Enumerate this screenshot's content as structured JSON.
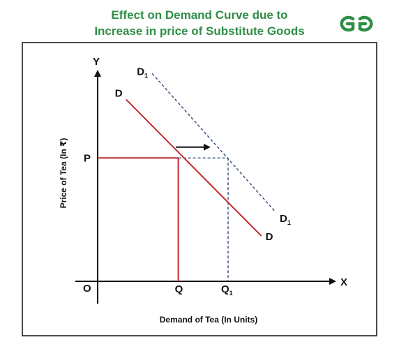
{
  "header": {
    "title_line1": "Effect on Demand Curve due to",
    "title_line2": "Increase in price of Substitute Goods",
    "logo_text": "GG"
  },
  "colors": {
    "title": "#2f8d46",
    "curve_d": "#c0282b",
    "curve_d1": "#2e4a7a",
    "axis": "#111111"
  },
  "chart_data": {
    "type": "line",
    "title": "Effect on Demand Curve due to Increase in price of Substitute Goods",
    "xlabel": "Demand of Tea (In Units)",
    "ylabel": "Price of Tea (In ₹)",
    "axis_x_letter": "X",
    "axis_y_letter": "Y",
    "origin_label": "O",
    "xlim": [
      0,
      10
    ],
    "ylim": [
      0,
      10
    ],
    "grid": false,
    "series": [
      {
        "name": "D",
        "label_start": "D",
        "label_end": "D",
        "style": "solid",
        "points": [
          [
            1.2,
            8.4
          ],
          [
            6.9,
            2.1
          ]
        ]
      },
      {
        "name": "D1",
        "label_start": "D",
        "label_end": "D",
        "label_sub": "1",
        "style": "dashed",
        "points": [
          [
            2.3,
            9.6
          ],
          [
            7.5,
            3.2
          ]
        ]
      }
    ],
    "reference": {
      "price_label": "P",
      "price_value": 5.7,
      "qty_label": "Q",
      "qty_value": 3.4,
      "qty1_label": "Q",
      "qty1_sub": "1",
      "qty1_value": 5.5
    },
    "shift_arrow": {
      "from": [
        3.3,
        6.2
      ],
      "to": [
        4.7,
        6.2
      ]
    }
  }
}
